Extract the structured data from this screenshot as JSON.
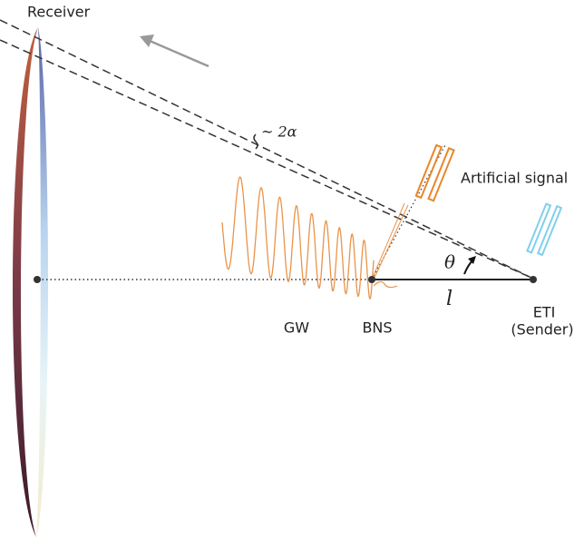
{
  "labels": {
    "receiver": "Receiver",
    "angle_spread": "~ 2α",
    "artificial_signal": "Artificial signal",
    "theta": "θ",
    "distance": "l",
    "gw": "GW",
    "bns": "BNS",
    "eti": "ETI",
    "sender": "(Sender)"
  }
}
